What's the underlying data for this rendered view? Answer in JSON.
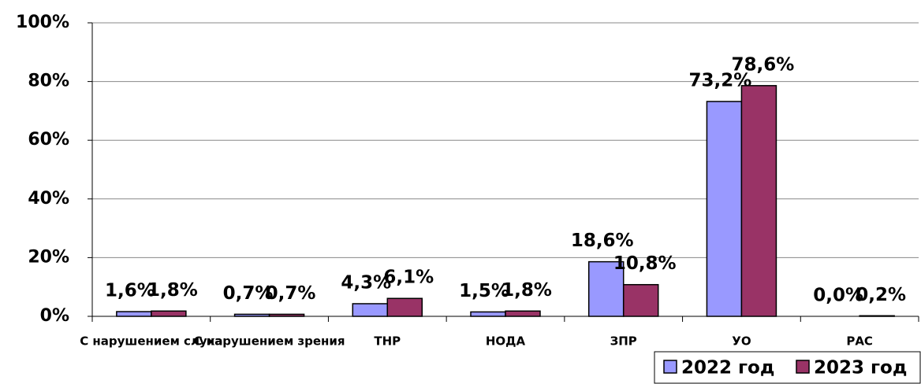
{
  "chart_data": {
    "type": "bar",
    "categories": [
      "С нарушением слуха",
      "С нарушением зрения",
      "ТНР",
      "НОДА",
      "ЗПР",
      "УО",
      "РАС"
    ],
    "series": [
      {
        "name": "2022 год",
        "color": "#9999ff",
        "values": [
          1.6,
          0.7,
          4.3,
          1.5,
          18.6,
          73.2,
          0.0
        ],
        "value_labels": [
          "1,6%",
          "0,7%",
          "4,3%",
          "1,5%",
          "18,6%",
          "73,2%",
          "0,0%"
        ]
      },
      {
        "name": "2023 год",
        "color": "#993366",
        "values": [
          1.8,
          0.7,
          6.1,
          1.8,
          10.8,
          78.6,
          0.2
        ],
        "value_labels": [
          "1,8%",
          "0,7%",
          "6,1%",
          "1,8%",
          "10,8%",
          "78,6%",
          "0,2%"
        ]
      }
    ],
    "ylim": [
      0,
      100
    ],
    "yticks": [
      {
        "value": 0,
        "label": "0%"
      },
      {
        "value": 20,
        "label": "20%"
      },
      {
        "value": 40,
        "label": "40%"
      },
      {
        "value": 60,
        "label": "60%"
      },
      {
        "value": 80,
        "label": "80%"
      },
      {
        "value": 100,
        "label": "100%"
      }
    ],
    "grid": true,
    "legend": "bottom-right"
  }
}
